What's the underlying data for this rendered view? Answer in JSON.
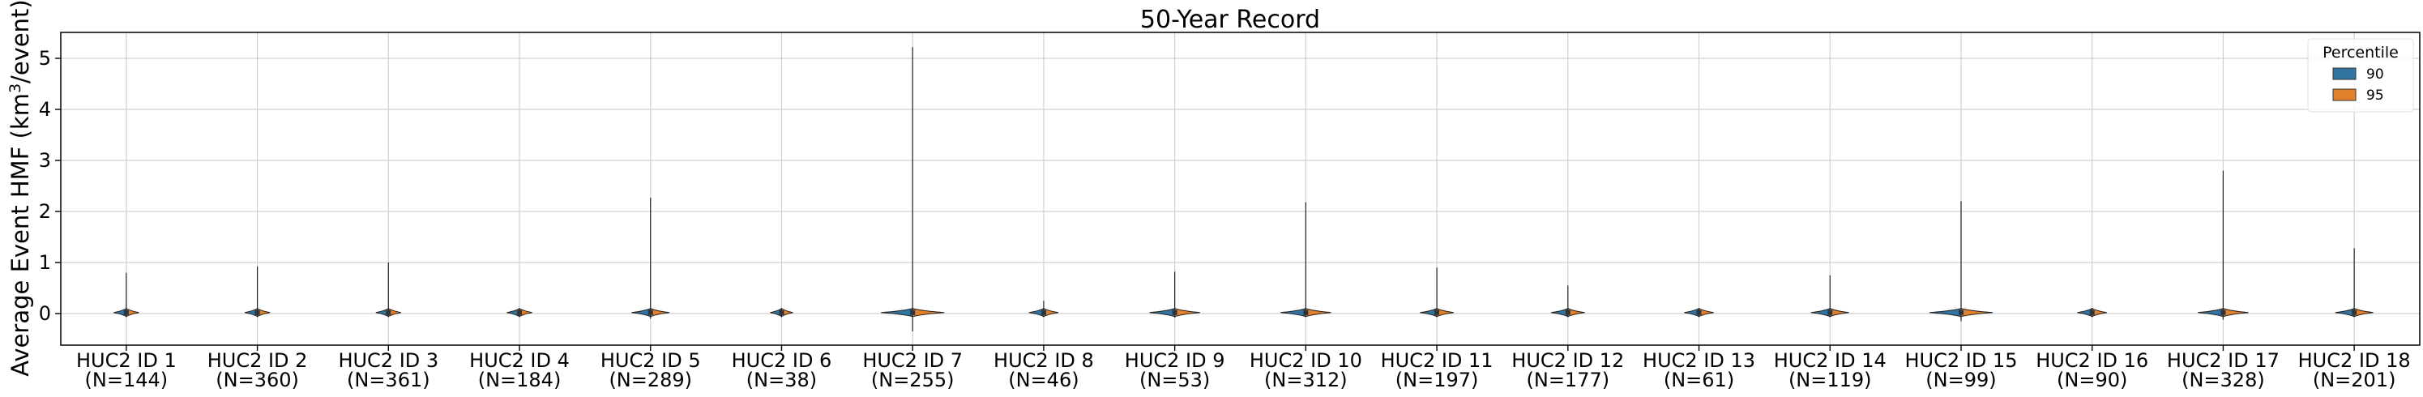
{
  "chart_data": {
    "type": "violin",
    "title": "50-Year Record",
    "ylabel_main": "Average Event HMF (km",
    "ylabel_sup": "3",
    "ylabel_tail": "/event)",
    "ylim": [
      -0.6,
      5.5
    ],
    "yticks": [
      "0",
      "1",
      "2",
      "3",
      "4",
      "5"
    ],
    "grid": true,
    "legend": {
      "title": "Percentile",
      "placement": "top-right",
      "entries": [
        {
          "label": "90",
          "color": "#3274a1"
        },
        {
          "label": "95",
          "color": "#e1812c"
        }
      ]
    },
    "categories": [
      {
        "name": "HUC2 ID 1",
        "n": "(N=144)",
        "max": 0.8,
        "min": -0.05,
        "width": 0.06
      },
      {
        "name": "HUC2 ID 2",
        "n": "(N=360)",
        "max": 0.92,
        "min": -0.04,
        "width": 0.06
      },
      {
        "name": "HUC2 ID 3",
        "n": "(N=361)",
        "max": 1.0,
        "min": -0.04,
        "width": 0.06
      },
      {
        "name": "HUC2 ID 4",
        "n": "(N=184)",
        "max": 0.06,
        "min": -0.03,
        "width": 0.06
      },
      {
        "name": "HUC2 ID 5",
        "n": "(N=289)",
        "max": 2.27,
        "min": -0.1,
        "width": 0.09
      },
      {
        "name": "HUC2 ID 6",
        "n": "(N=38)",
        "max": 0.02,
        "min": -0.02,
        "width": 0.05
      },
      {
        "name": "HUC2 ID 7",
        "n": "(N=255)",
        "max": 5.22,
        "min": -0.35,
        "width": 0.15
      },
      {
        "name": "HUC2 ID 8",
        "n": "(N=46)",
        "max": 0.25,
        "min": -0.04,
        "width": 0.07
      },
      {
        "name": "HUC2 ID 9",
        "n": "(N=53)",
        "max": 0.82,
        "min": -0.08,
        "width": 0.12
      },
      {
        "name": "HUC2 ID 10",
        "n": "(N=312)",
        "max": 2.18,
        "min": -0.06,
        "width": 0.12
      },
      {
        "name": "HUC2 ID 11",
        "n": "(N=197)",
        "max": 0.9,
        "min": -0.05,
        "width": 0.08
      },
      {
        "name": "HUC2 ID 12",
        "n": "(N=177)",
        "max": 0.55,
        "min": -0.05,
        "width": 0.08
      },
      {
        "name": "HUC2 ID 13",
        "n": "(N=61)",
        "max": 0.1,
        "min": -0.04,
        "width": 0.07
      },
      {
        "name": "HUC2 ID 14",
        "n": "(N=119)",
        "max": 0.75,
        "min": -0.06,
        "width": 0.09
      },
      {
        "name": "HUC2 ID 15",
        "n": "(N=99)",
        "max": 2.2,
        "min": -0.15,
        "width": 0.15
      },
      {
        "name": "HUC2 ID 16",
        "n": "(N=90)",
        "max": 0.08,
        "min": -0.03,
        "width": 0.07
      },
      {
        "name": "HUC2 ID 17",
        "n": "(N=328)",
        "max": 2.8,
        "min": -0.12,
        "width": 0.12
      },
      {
        "name": "HUC2 ID 18",
        "n": "(N=201)",
        "max": 1.28,
        "min": -0.06,
        "width": 0.09
      }
    ]
  }
}
